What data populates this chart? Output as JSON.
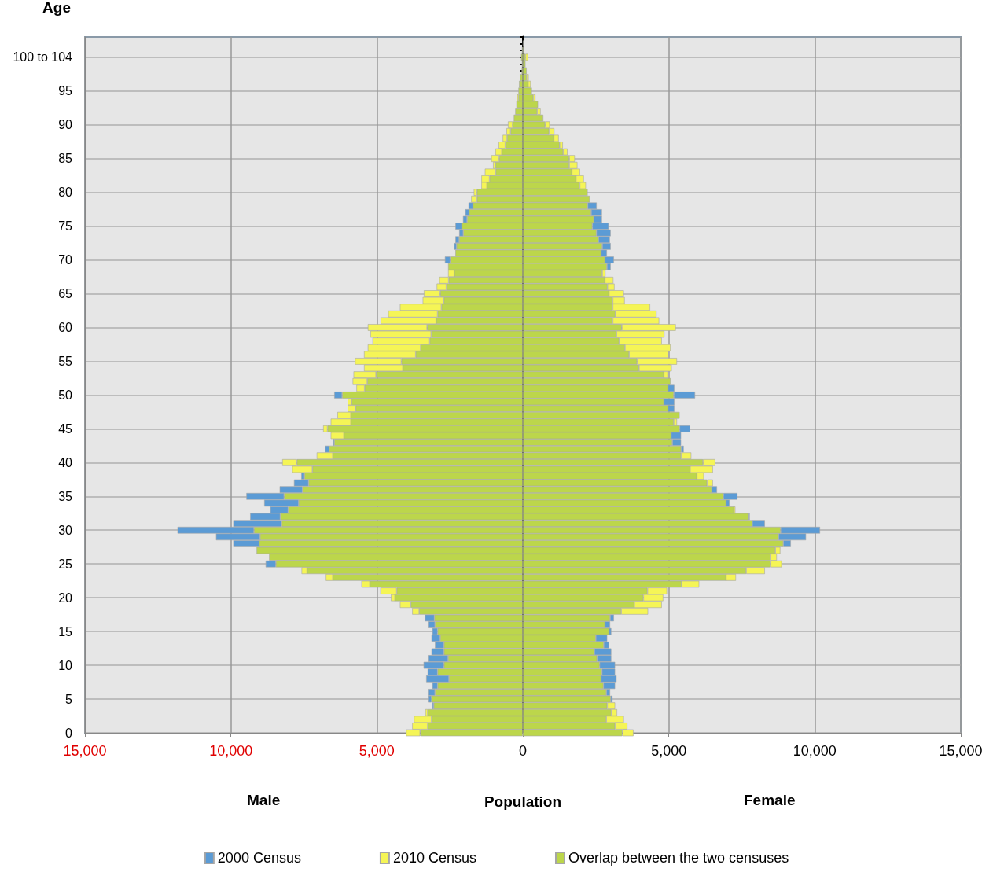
{
  "chart_data": {
    "type": "bar",
    "orientation": "horizontal",
    "stacked": true,
    "ylabel": "Age",
    "xlabel": "Population",
    "annotations": [
      "Male",
      "Female"
    ],
    "categories": [
      null,
      null,
      null,
      "100 to 104",
      null,
      null,
      null,
      null,
      "95",
      null,
      null,
      null,
      null,
      "90",
      null,
      null,
      null,
      null,
      "85",
      null,
      null,
      null,
      null,
      "80",
      null,
      null,
      null,
      null,
      "75",
      null,
      null,
      null,
      null,
      "70",
      null,
      null,
      null,
      null,
      "65",
      null,
      null,
      null,
      null,
      "60",
      null,
      null,
      null,
      null,
      "55",
      null,
      null,
      null,
      null,
      "50",
      null,
      null,
      null,
      null,
      "45",
      null,
      null,
      null,
      null,
      "40",
      null,
      null,
      null,
      null,
      "35",
      null,
      null,
      null,
      null,
      "30",
      null,
      null,
      null,
      null,
      "25",
      null,
      null,
      null,
      null,
      "20",
      null,
      null,
      null,
      null,
      "15",
      null,
      null,
      null,
      null,
      "10",
      null,
      null,
      null,
      null,
      "5",
      null,
      null,
      null,
      null,
      "0"
    ],
    "xlim": [
      -15000,
      15000
    ],
    "xticks": [
      {
        "value": -15000,
        "label": "15,000"
      },
      {
        "value": -10000,
        "label": "10,000"
      },
      {
        "value": -5000,
        "label": "5,000"
      },
      0,
      {
        "value": 5000,
        "label": "5,000"
      },
      {
        "value": 10000,
        "label": "10,000"
      },
      {
        "value": 15000,
        "label": "15,000"
      }
    ],
    "grid": true,
    "legend": "bottom",
    "series": [
      {
        "name": "Overlap between the two censuses",
        "color": "#bcd64b",
        "values": [
          null,
          null,
          -30,
          -60,
          -30,
          -40,
          -90,
          -130,
          -150,
          -150,
          -220,
          -260,
          -310,
          -350,
          -420,
          -540,
          -600,
          -720,
          -810,
          -940,
          -930,
          -1140,
          -1230,
          -1570,
          -1570,
          -1710,
          -1840,
          -1910,
          -2090,
          -2040,
          -2180,
          -2270,
          -2310,
          -2490,
          -2560,
          -2350,
          -2540,
          -2620,
          -2830,
          -2710,
          -2790,
          -2920,
          -2970,
          -3280,
          -3140,
          -3190,
          -3500,
          -3670,
          -4160,
          -4110,
          -5030,
          -5330,
          -5420,
          -6190,
          -5870,
          -5730,
          -5890,
          -5890,
          -6690,
          -6130,
          -6460,
          -6630,
          -6510,
          -7740,
          -7210,
          -7480,
          -7340,
          -7550,
          -8180,
          -7680,
          -8040,
          -8310,
          -8260,
          -9210,
          -9000,
          -9030,
          -9120,
          -8690,
          -8460,
          -7390,
          -6510,
          -5240,
          -4320,
          -4380,
          -3840,
          -3550,
          -3030,
          -3010,
          -2920,
          -2830,
          -2700,
          -2700,
          -2560,
          -2700,
          -2920,
          -2530,
          -2920,
          -3010,
          -3130,
          -3050,
          -3260,
          -3130,
          -3260,
          -3520
        ]
      },
      {
        "name": "2000 Census",
        "color": "#5b9bd5",
        "values": [
          null,
          null,
          null,
          null,
          null,
          null,
          null,
          null,
          null,
          null,
          null,
          null,
          null,
          null,
          null,
          null,
          null,
          null,
          null,
          null,
          null,
          null,
          null,
          null,
          null,
          -150,
          -130,
          -140,
          -220,
          -140,
          -130,
          -80,
          null,
          -180,
          null,
          null,
          null,
          null,
          null,
          null,
          null,
          null,
          null,
          null,
          null,
          null,
          null,
          null,
          null,
          null,
          null,
          null,
          null,
          -270,
          null,
          null,
          null,
          null,
          null,
          null,
          -40,
          -140,
          null,
          null,
          null,
          -110,
          -500,
          -780,
          -1290,
          -1180,
          -610,
          -1030,
          -1660,
          -2620,
          -1510,
          -890,
          null,
          null,
          -350,
          null,
          null,
          null,
          null,
          null,
          null,
          null,
          -320,
          -220,
          -180,
          -300,
          -310,
          -430,
          -670,
          -700,
          -340,
          -780,
          -180,
          -220,
          -100,
          -50,
          null,
          null,
          null,
          null
        ]
      },
      {
        "name": "2010 Census",
        "color": "#f5f556",
        "values": [
          null,
          null,
          null,
          null,
          null,
          null,
          null,
          null,
          null,
          -50,
          null,
          null,
          null,
          -160,
          -140,
          -150,
          -230,
          -220,
          -270,
          -80,
          -370,
          -280,
          -190,
          -110,
          -200,
          null,
          null,
          null,
          null,
          null,
          null,
          null,
          null,
          null,
          null,
          -210,
          -320,
          -330,
          -560,
          -720,
          -1420,
          -1690,
          -1900,
          -2030,
          -2080,
          -1960,
          -1810,
          -1770,
          -1590,
          -1330,
          -770,
          -500,
          -280,
          null,
          -130,
          -270,
          -460,
          -690,
          -150,
          -450,
          null,
          null,
          -550,
          -500,
          -690,
          null,
          null,
          null,
          null,
          null,
          null,
          null,
          null,
          null,
          null,
          null,
          null,
          null,
          null,
          -190,
          -240,
          -290,
          -560,
          -140,
          -370,
          -240,
          null,
          null,
          null,
          null,
          null,
          null,
          null,
          null,
          null,
          null,
          null,
          null,
          null,
          null,
          -80,
          -600,
          -530,
          -480
        ]
      },
      {
        "color": "#bcd64b",
        "values": [
          null,
          20,
          30,
          90,
          90,
          130,
          130,
          180,
          310,
          360,
          520,
          490,
          700,
          760,
          900,
          1060,
          1260,
          1380,
          1590,
          1590,
          1680,
          1820,
          1950,
          2220,
          2290,
          2220,
          2340,
          2430,
          2380,
          2520,
          2590,
          2720,
          2680,
          2810,
          2880,
          2720,
          2810,
          2900,
          2950,
          3080,
          3080,
          3170,
          3080,
          3390,
          3210,
          3300,
          3500,
          3640,
          3910,
          3980,
          4830,
          5060,
          4970,
          5170,
          4830,
          4970,
          5370,
          5170,
          5370,
          5080,
          5120,
          5420,
          5420,
          6170,
          5730,
          5960,
          6310,
          6470,
          6870,
          6960,
          7230,
          7740,
          7860,
          8830,
          8760,
          8920,
          8650,
          8490,
          8490,
          7650,
          6960,
          5440,
          4270,
          4130,
          3820,
          3370,
          2990,
          2810,
          2950,
          2500,
          2770,
          2450,
          2540,
          2630,
          2710,
          2680,
          2760,
          2860,
          3010,
          2890,
          3030,
          2860,
          3160,
          3410
        ]
      },
      {
        "color": "#5b9bd5",
        "values": [
          null,
          null,
          null,
          null,
          null,
          null,
          null,
          null,
          null,
          null,
          null,
          null,
          null,
          null,
          null,
          null,
          null,
          null,
          null,
          null,
          null,
          null,
          null,
          null,
          null,
          310,
          370,
          280,
          560,
          490,
          390,
          290,
          200,
          310,
          130,
          null,
          null,
          null,
          null,
          null,
          null,
          null,
          null,
          null,
          null,
          null,
          null,
          null,
          null,
          null,
          null,
          null,
          220,
          730,
          360,
          220,
          null,
          null,
          360,
          340,
          300,
          90,
          null,
          null,
          null,
          null,
          null,
          180,
          480,
          120,
          null,
          30,
          430,
          1350,
          940,
          260,
          null,
          null,
          null,
          null,
          null,
          null,
          null,
          null,
          null,
          null,
          130,
          180,
          80,
          390,
          180,
          580,
          490,
          530,
          450,
          530,
          400,
          130,
          60,
          null,
          null,
          null,
          null,
          null
        ]
      },
      {
        "color": "#f5f556",
        "values": [
          null,
          null,
          null,
          90,
          null,
          null,
          70,
          90,
          null,
          70,
          null,
          120,
          null,
          160,
          180,
          170,
          110,
          150,
          190,
          280,
          280,
          270,
          210,
          null,
          null,
          null,
          null,
          null,
          null,
          null,
          null,
          null,
          null,
          null,
          null,
          110,
          290,
          240,
          510,
          410,
          1280,
          1410,
          1590,
          1850,
          1640,
          1460,
          1560,
          1350,
          1370,
          1120,
          140,
          null,
          null,
          null,
          null,
          null,
          null,
          110,
          null,
          null,
          null,
          null,
          350,
          420,
          780,
          240,
          200,
          null,
          null,
          null,
          50,
          null,
          null,
          null,
          null,
          null,
          170,
          210,
          380,
          640,
          340,
          600,
          670,
          680,
          940,
          920,
          null,
          null,
          null,
          null,
          null,
          null,
          null,
          null,
          null,
          null,
          null,
          null,
          null,
          270,
          200,
          600,
          420,
          380
        ]
      }
    ]
  }
}
